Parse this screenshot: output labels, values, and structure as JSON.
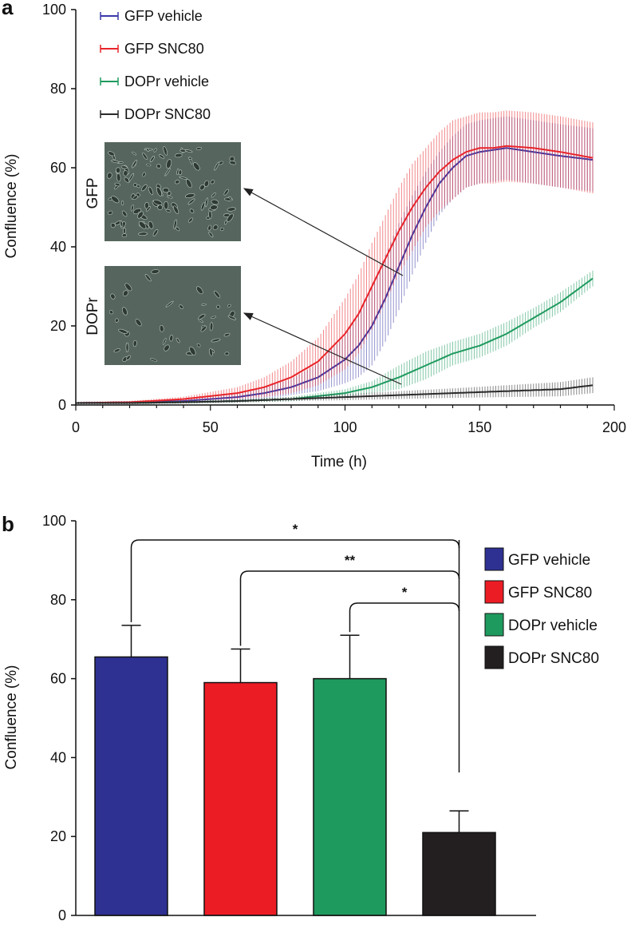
{
  "panel_a": {
    "label": "a"
  },
  "panel_b": {
    "label": "b"
  },
  "insets": [
    {
      "label": "GFP"
    },
    {
      "label": "DOPr"
    }
  ],
  "chart_data": [
    {
      "type": "line",
      "xlabel": "Time (h)",
      "ylabel": "Confluence (%)",
      "xlim": [
        0,
        200
      ],
      "ylim": [
        0,
        100
      ],
      "xticks": [
        0,
        50,
        100,
        150,
        200
      ],
      "yticks": [
        0,
        20,
        40,
        60,
        80,
        100
      ],
      "legend": "top-left",
      "error_bars": true,
      "series": [
        {
          "name": "GFP vehicle",
          "color": "#3a3aa8",
          "x": [
            0,
            20,
            40,
            60,
            70,
            80,
            90,
            100,
            105,
            110,
            115,
            120,
            125,
            130,
            135,
            140,
            145,
            150,
            155,
            160,
            170,
            180,
            192
          ],
          "y": [
            0.5,
            0.7,
            1,
            2,
            3,
            4.5,
            7,
            11.5,
            15,
            20,
            27,
            35,
            43,
            50,
            56,
            60,
            63,
            64,
            64.5,
            65,
            64,
            63,
            62
          ],
          "err": [
            0.3,
            0.3,
            0.5,
            1,
            1.5,
            2,
            3.5,
            6,
            8,
            10,
            11,
            11,
            10,
            9,
            8,
            8,
            8,
            8,
            8,
            8,
            8,
            8,
            8
          ]
        },
        {
          "name": "GFP SNC80",
          "color": "#e8242a",
          "x": [
            0,
            20,
            40,
            60,
            70,
            80,
            90,
            100,
            105,
            110,
            115,
            120,
            125,
            130,
            135,
            140,
            145,
            150,
            155,
            160,
            170,
            180,
            192
          ],
          "y": [
            0.5,
            0.7,
            1.5,
            3,
            4.5,
            7,
            11,
            18,
            23,
            30,
            37,
            44,
            50,
            55,
            59,
            62,
            64,
            65,
            65,
            65.5,
            65,
            64,
            62.5
          ],
          "err": [
            0.3,
            0.3,
            0.6,
            1.5,
            2.5,
            4,
            6,
            9,
            10,
            11,
            11,
            11,
            11,
            10,
            10,
            10,
            9,
            9,
            9,
            9,
            9,
            9,
            9
          ]
        },
        {
          "name": "DOPr vehicle",
          "color": "#1f9a5e",
          "x": [
            0,
            20,
            40,
            60,
            80,
            100,
            110,
            120,
            130,
            140,
            150,
            160,
            170,
            180,
            192
          ],
          "y": [
            0.5,
            0.5,
            0.7,
            1,
            1.5,
            3,
            4.5,
            7,
            10,
            13,
            15,
            18,
            22,
            26,
            32
          ],
          "err": [
            0.3,
            0.3,
            0.3,
            0.4,
            0.6,
            1,
            1.5,
            3,
            3.5,
            3,
            3,
            3,
            2.5,
            2.5,
            2
          ]
        },
        {
          "name": "DOPr SNC80",
          "color": "#2a2a2a",
          "x": [
            0,
            20,
            40,
            60,
            80,
            100,
            120,
            140,
            160,
            180,
            192
          ],
          "y": [
            0.5,
            0.5,
            0.7,
            1,
            1.5,
            2,
            2.5,
            3,
            3.5,
            4,
            5
          ],
          "err": [
            0.3,
            0.3,
            0.3,
            0.4,
            0.5,
            0.8,
            1,
            1.2,
            1.5,
            1.8,
            2
          ]
        }
      ]
    },
    {
      "type": "bar",
      "ylabel": "Confluence (%)",
      "ylim": [
        0,
        100
      ],
      "yticks": [
        0,
        20,
        40,
        60,
        80,
        100
      ],
      "legend": "right",
      "categories": [
        "GFP vehicle",
        "GFP SNC80",
        "DOPr vehicle",
        "DOPr SNC80"
      ],
      "values": [
        65.5,
        59,
        60,
        21
      ],
      "errors": [
        8,
        8.5,
        11,
        5.5
      ],
      "colors": [
        "#2e3192",
        "#ec1c24",
        "#1f9a5e",
        "#231f20"
      ],
      "significance": [
        {
          "from": 0,
          "to": 3,
          "label": "*"
        },
        {
          "from": 1,
          "to": 3,
          "label": "**"
        },
        {
          "from": 2,
          "to": 3,
          "label": "*"
        }
      ]
    }
  ]
}
